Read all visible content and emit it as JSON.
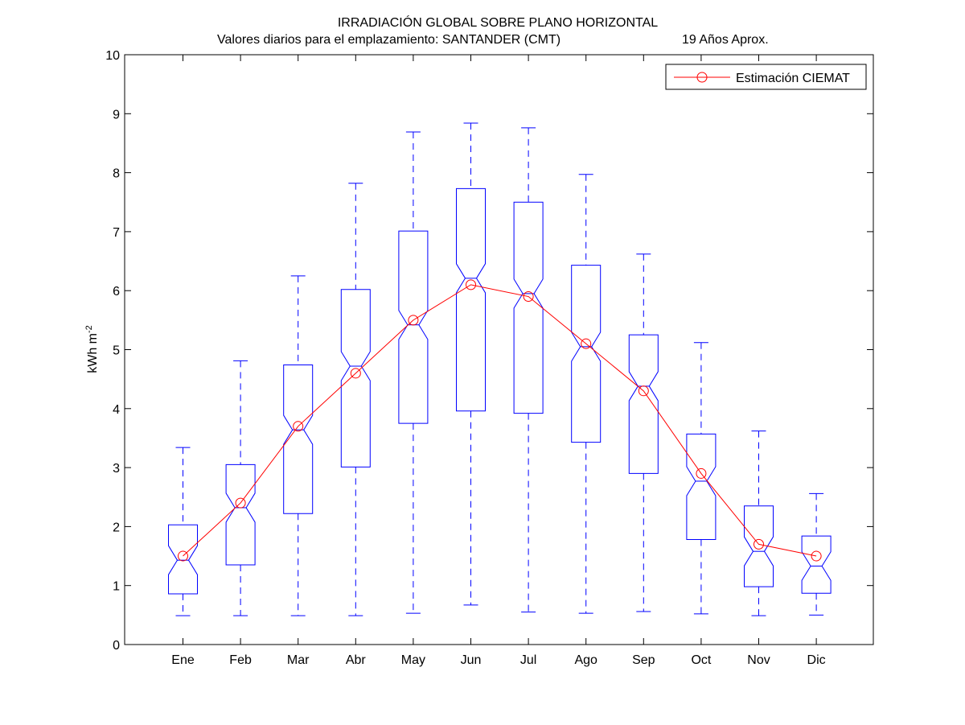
{
  "chart_data": {
    "type": "box",
    "title": "IRRADIACIÓN GLOBAL SOBRE PLANO HORIZONTAL",
    "subtitle_left": "Valores diarios para el emplazamiento:  SANTANDER (CMT)",
    "subtitle_right": "19 Años Aprox.",
    "ylabel_base": "kWh m",
    "ylabel_exp": "-2",
    "ylim": [
      0,
      10
    ],
    "yticks": [
      "0",
      "1",
      "2",
      "3",
      "4",
      "5",
      "6",
      "7",
      "8",
      "9",
      "10"
    ],
    "categories": [
      "Ene",
      "Feb",
      "Mar",
      "Abr",
      "May",
      "Jun",
      "Jul",
      "Ago",
      "Sep",
      "Oct",
      "Nov",
      "Dic"
    ],
    "boxes": [
      {
        "min": 0.49,
        "q1": 0.86,
        "median": 1.43,
        "q3": 2.03,
        "max": 3.34
      },
      {
        "min": 0.49,
        "q1": 1.35,
        "median": 2.32,
        "q3": 3.05,
        "max": 4.81
      },
      {
        "min": 0.49,
        "q1": 2.22,
        "median": 3.64,
        "q3": 4.74,
        "max": 6.25
      },
      {
        "min": 0.49,
        "q1": 3.01,
        "median": 4.72,
        "q3": 6.02,
        "max": 7.82
      },
      {
        "min": 0.53,
        "q1": 3.75,
        "median": 5.42,
        "q3": 7.01,
        "max": 8.69
      },
      {
        "min": 0.67,
        "q1": 3.96,
        "median": 6.21,
        "q3": 7.73,
        "max": 8.84
      },
      {
        "min": 0.55,
        "q1": 3.92,
        "median": 5.95,
        "q3": 7.5,
        "max": 8.76
      },
      {
        "min": 0.53,
        "q1": 3.43,
        "median": 5.05,
        "q3": 6.43,
        "max": 7.97
      },
      {
        "min": 0.56,
        "q1": 2.9,
        "median": 4.38,
        "q3": 5.25,
        "max": 6.62
      },
      {
        "min": 0.52,
        "q1": 1.78,
        "median": 2.77,
        "q3": 3.57,
        "max": 5.12
      },
      {
        "min": 0.49,
        "q1": 0.98,
        "median": 1.58,
        "q3": 2.35,
        "max": 3.62
      },
      {
        "min": 0.5,
        "q1": 0.87,
        "median": 1.33,
        "q3": 1.84,
        "max": 2.56
      }
    ],
    "series": [
      {
        "name": "Estimación CIEMAT",
        "values": [
          1.5,
          2.4,
          3.7,
          4.6,
          5.5,
          6.1,
          5.9,
          5.1,
          4.3,
          2.9,
          1.7,
          1.5
        ]
      }
    ],
    "legend": "top-right",
    "grid": false,
    "colors": {
      "box": "#0000ff",
      "series": "#ff0000",
      "axes": "#000000"
    }
  }
}
